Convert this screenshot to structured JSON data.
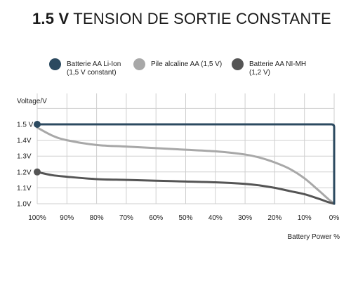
{
  "title": {
    "bold": "1.5 V",
    "rest": "TENSION DE SORTIE CONSTANTE"
  },
  "legend": [
    {
      "line1": "Batterie AA Li-Ion",
      "line2": "(1,5 V constant)",
      "color": "#2c4a60"
    },
    {
      "line1": "Pile alcaline AA (1,5 V)",
      "line2": "",
      "color": "#a8a8a8"
    },
    {
      "line1": "Batterie AA NI-MH",
      "line2": "(1,2 V)",
      "color": "#555555"
    }
  ],
  "chart_data": {
    "type": "line",
    "ylabel": "Voltage/V",
    "xlabel": "Battery Power %",
    "x_ticks": [
      "100%",
      "90%",
      "80%",
      "70%",
      "60%",
      "50%",
      "40%",
      "30%",
      "20%",
      "10%",
      "0%"
    ],
    "y_ticks": [
      "1.0V",
      "1.1V",
      "1.2V",
      "1.3V",
      "1.4V",
      "1.5 V"
    ],
    "xlim": [
      100,
      0
    ],
    "ylim": [
      1.0,
      1.5
    ],
    "grid": true,
    "series": [
      {
        "name": "Batterie AA Li-Ion (1,5 V constant)",
        "color": "#2c4a60",
        "x": [
          100,
          90,
          80,
          70,
          60,
          50,
          40,
          30,
          20,
          10,
          1,
          0
        ],
        "y": [
          1.5,
          1.5,
          1.5,
          1.5,
          1.5,
          1.5,
          1.5,
          1.5,
          1.5,
          1.5,
          1.5,
          1.0
        ]
      },
      {
        "name": "Pile alcaline AA (1,5 V)",
        "color": "#a8a8a8",
        "x": [
          100,
          95,
          90,
          80,
          70,
          60,
          50,
          40,
          30,
          25,
          20,
          15,
          10,
          5,
          2,
          0
        ],
        "y": [
          1.48,
          1.43,
          1.4,
          1.37,
          1.36,
          1.35,
          1.34,
          1.33,
          1.31,
          1.29,
          1.26,
          1.22,
          1.16,
          1.08,
          1.03,
          1.0
        ]
      },
      {
        "name": "Batterie AA NI-MH (1,2 V)",
        "color": "#555555",
        "x": [
          100,
          95,
          90,
          80,
          70,
          60,
          50,
          40,
          30,
          25,
          20,
          15,
          10,
          5,
          2,
          0
        ],
        "y": [
          1.2,
          1.18,
          1.17,
          1.155,
          1.15,
          1.145,
          1.14,
          1.135,
          1.125,
          1.115,
          1.1,
          1.08,
          1.06,
          1.03,
          1.01,
          1.0
        ]
      }
    ],
    "markers": [
      {
        "x": 100,
        "y": 1.5,
        "color": "#2c4a60"
      },
      {
        "x": 100,
        "y": 1.2,
        "color": "#555555"
      }
    ]
  }
}
